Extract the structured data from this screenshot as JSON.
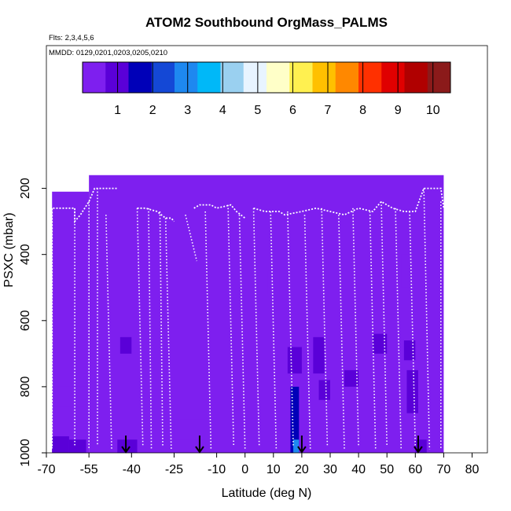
{
  "chart_data": {
    "type": "heatmap",
    "title": "ATOM2 Southbound OrgMass_PALMS",
    "flights_label": "Flts: 2,3,4,5,6",
    "dates_label": "MMDD: 0129,0201,0203,0205,0210",
    "xlabel": "Latitude (deg N)",
    "ylabel": "PSXC (mbar)",
    "xlim": [
      -70,
      80
    ],
    "ylim": [
      1000,
      0
    ],
    "x_ticks": [
      -70,
      -55,
      -40,
      -25,
      -10,
      0,
      10,
      20,
      30,
      40,
      50,
      60,
      70,
      80
    ],
    "y_ticks": [
      200,
      400,
      600,
      800,
      1000
    ],
    "colorbar": {
      "ticks": [
        1,
        2,
        3,
        4,
        5,
        6,
        7,
        8,
        9,
        10
      ],
      "range": [
        0,
        10.5
      ],
      "colors": [
        "#7e1fef",
        "#5a00d8",
        "#0000b8",
        "#1448d6",
        "#1e88f0",
        "#00b8f8",
        "#9ad0f0",
        "#e8f4ff",
        "#ffffc8",
        "#fff050",
        "#ffc000",
        "#ff8800",
        "#ff3000",
        "#e00000",
        "#b00000",
        "#8b1a1a"
      ]
    },
    "background_value": 0.3,
    "cells": [
      {
        "lat": [
          -68,
          -55
        ],
        "p": [
          210,
          1000
        ],
        "v": 0.3
      },
      {
        "lat": [
          -55,
          70
        ],
        "p": [
          160,
          1000
        ],
        "v": 0.3
      },
      {
        "lat": [
          -68,
          -62
        ],
        "p": [
          950,
          1000
        ],
        "v": 1.0
      },
      {
        "lat": [
          -62,
          -56
        ],
        "p": [
          960,
          1000
        ],
        "v": 0.8
      },
      {
        "lat": [
          -44,
          -40
        ],
        "p": [
          650,
          700
        ],
        "v": 0.9
      },
      {
        "lat": [
          -45,
          -38
        ],
        "p": [
          960,
          1000
        ],
        "v": 0.7
      },
      {
        "lat": [
          -68,
          -55
        ],
        "p": [
          800,
          860
        ],
        "v": 0.5
      },
      {
        "lat": [
          -25,
          -14
        ],
        "p": [
          900,
          960
        ],
        "v": 0.5
      },
      {
        "lat": [
          15,
          20
        ],
        "p": [
          680,
          760
        ],
        "v": 1.2
      },
      {
        "lat": [
          16,
          19
        ],
        "p": [
          800,
          1000
        ],
        "v": 1.6
      },
      {
        "lat": [
          17,
          19
        ],
        "p": [
          960,
          1000
        ],
        "v": 3.2
      },
      {
        "lat": [
          24,
          28
        ],
        "p": [
          650,
          760
        ],
        "v": 1.1
      },
      {
        "lat": [
          26,
          30
        ],
        "p": [
          780,
          840
        ],
        "v": 0.9
      },
      {
        "lat": [
          35,
          40
        ],
        "p": [
          750,
          800
        ],
        "v": 0.8
      },
      {
        "lat": [
          45,
          50
        ],
        "p": [
          640,
          700
        ],
        "v": 0.8
      },
      {
        "lat": [
          56,
          60
        ],
        "p": [
          660,
          720
        ],
        "v": 1.0
      },
      {
        "lat": [
          57,
          61
        ],
        "p": [
          750,
          880
        ],
        "v": 1.3
      },
      {
        "lat": [
          55,
          58
        ],
        "p": [
          400,
          500
        ],
        "v": 0.6
      },
      {
        "lat": [
          8,
          12
        ],
        "p": [
          450,
          520
        ],
        "v": 0.5
      },
      {
        "lat": [
          50,
          54
        ],
        "p": [
          520,
          580
        ],
        "v": 0.6
      },
      {
        "lat": [
          60,
          64
        ],
        "p": [
          960,
          1000
        ],
        "v": 0.9
      },
      {
        "lat": [
          30,
          34
        ],
        "p": [
          870,
          930
        ],
        "v": 0.6
      }
    ],
    "profiles": [
      {
        "top": [
          -68,
          260
        ],
        "bottom": [
          -68,
          990
        ]
      },
      {
        "top": [
          -60,
          260
        ],
        "bottom": [
          -60,
          980
        ]
      },
      {
        "top": [
          -55,
          240
        ],
        "bottom": [
          -55,
          990
        ]
      },
      {
        "top": [
          -52,
          200
        ],
        "bottom": [
          -52,
          980
        ]
      },
      {
        "top": [
          -49,
          280
        ],
        "bottom": [
          -47,
          990
        ]
      },
      {
        "top": [
          -38,
          260
        ],
        "bottom": [
          -36,
          980
        ]
      },
      {
        "top": [
          -34,
          260
        ],
        "bottom": [
          -33,
          990
        ]
      },
      {
        "top": [
          -30,
          270
        ],
        "bottom": [
          -29,
          980
        ]
      },
      {
        "top": [
          -28,
          290
        ],
        "bottom": [
          -26,
          990
        ]
      },
      {
        "top": [
          -21,
          280
        ],
        "bottom": [
          -17,
          420
        ]
      },
      {
        "top": [
          -14,
          270
        ],
        "bottom": [
          -12,
          990
        ]
      },
      {
        "top": [
          -6,
          250
        ],
        "bottom": [
          -4,
          980
        ]
      },
      {
        "top": [
          -2,
          280
        ],
        "bottom": [
          0,
          990
        ]
      },
      {
        "top": [
          3,
          260
        ],
        "bottom": [
          5,
          980
        ]
      },
      {
        "top": [
          9,
          270
        ],
        "bottom": [
          11,
          990
        ]
      },
      {
        "top": [
          15,
          270
        ],
        "bottom": [
          17,
          980
        ]
      },
      {
        "top": [
          21,
          280
        ],
        "bottom": [
          23,
          990
        ]
      },
      {
        "top": [
          27,
          260
        ],
        "bottom": [
          29,
          980
        ]
      },
      {
        "top": [
          33,
          280
        ],
        "bottom": [
          35,
          990
        ]
      },
      {
        "top": [
          38,
          260
        ],
        "bottom": [
          40,
          980
        ]
      },
      {
        "top": [
          44,
          270
        ],
        "bottom": [
          46,
          990
        ]
      },
      {
        "top": [
          48,
          240
        ],
        "bottom": [
          50,
          980
        ]
      },
      {
        "top": [
          53,
          260
        ],
        "bottom": [
          55,
          990
        ]
      },
      {
        "top": [
          58,
          270
        ],
        "bottom": [
          60,
          980
        ]
      },
      {
        "top": [
          63,
          200
        ],
        "bottom": [
          65,
          990
        ]
      },
      {
        "top": [
          69,
          240
        ],
        "bottom": [
          69,
          990
        ]
      }
    ],
    "flight_tracks": [
      {
        "path": [
          [
            -68,
            980
          ],
          [
            -68,
            260
          ],
          [
            -60,
            260
          ],
          [
            -60,
            300
          ],
          [
            -58,
            280
          ],
          [
            -55,
            240
          ],
          [
            -53,
            200
          ],
          [
            -45,
            200
          ]
        ]
      },
      {
        "path": [
          [
            -38,
            260
          ],
          [
            -35,
            260
          ],
          [
            -31,
            270
          ],
          [
            -28,
            290
          ],
          [
            -26,
            290
          ],
          [
            -25,
            300
          ]
        ]
      },
      {
        "path": [
          [
            -18,
            260
          ],
          [
            -16,
            250
          ],
          [
            -12,
            250
          ],
          [
            -10,
            260
          ],
          [
            -5,
            250
          ],
          [
            -3,
            270
          ],
          [
            0,
            290
          ]
        ]
      },
      {
        "path": [
          [
            3,
            260
          ],
          [
            7,
            270
          ],
          [
            12,
            270
          ],
          [
            14,
            280
          ],
          [
            20,
            270
          ],
          [
            25,
            260
          ],
          [
            30,
            270
          ],
          [
            35,
            280
          ],
          [
            40,
            260
          ],
          [
            45,
            270
          ],
          [
            48,
            240
          ],
          [
            52,
            260
          ],
          [
            56,
            270
          ],
          [
            60,
            270
          ],
          [
            63,
            200
          ],
          [
            69,
            200
          ],
          [
            70,
            260
          ]
        ]
      }
    ],
    "arrows_lat": [
      -42,
      -16,
      20,
      61
    ]
  }
}
